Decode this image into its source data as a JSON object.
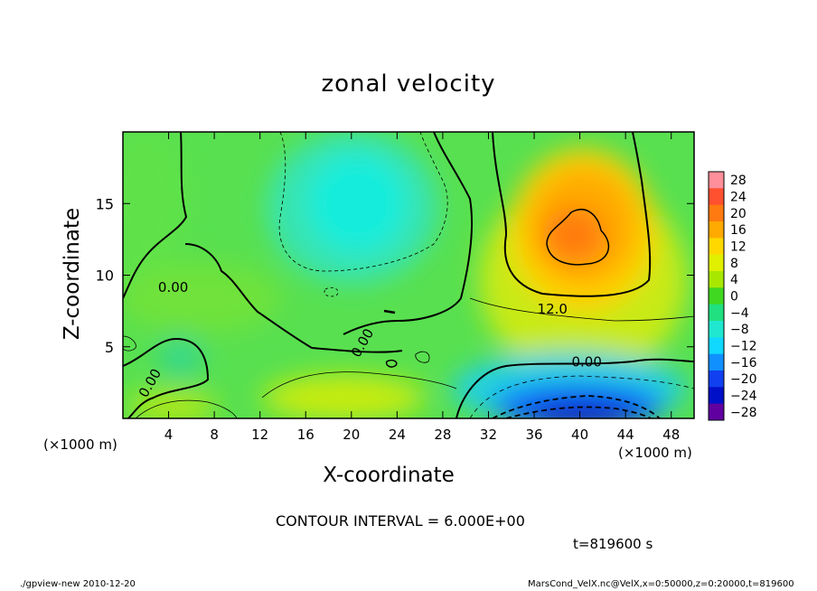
{
  "chart_data": {
    "type": "heatmap",
    "title": "zonal velocity",
    "xlabel": "X-coordinate",
    "ylabel": "Z-coordinate",
    "x_unit_label": "(×1000 m)",
    "xlim": [
      0,
      50
    ],
    "ylim": [
      0,
      20
    ],
    "x_ticks": [
      4,
      8,
      12,
      16,
      20,
      24,
      28,
      32,
      36,
      40,
      44,
      48
    ],
    "y_ticks": [
      5,
      10,
      15
    ],
    "colorbar": {
      "levels": [
        28,
        24,
        20,
        16,
        12,
        8,
        4,
        0,
        -4,
        -8,
        -12,
        -16,
        -20,
        -24,
        -28
      ],
      "labels": [
        "28",
        "24",
        "20",
        "16",
        "12",
        "8",
        "4",
        "0",
        "−4",
        "−8",
        "−12",
        "−16",
        "−20",
        "−24",
        "−28"
      ],
      "colors": [
        "#ff8f9a",
        "#ff5030",
        "#ff7a10",
        "#ffaa00",
        "#ffd800",
        "#e0f000",
        "#a8e800",
        "#40d820",
        "#20e080",
        "#20e8d0",
        "#10d8ff",
        "#1090ff",
        "#1040f0",
        "#0010c8",
        "#6000a0"
      ]
    },
    "contour_labels": [
      {
        "text": "0.00",
        "x": 4.4,
        "z": 9.2
      },
      {
        "text": "12.0",
        "x": 37.6,
        "z": 7.7
      },
      {
        "text": "0.00",
        "x": 40.6,
        "z": 4.0
      },
      {
        "text": "0.00",
        "x": 20.9,
        "z": 5.3
      },
      {
        "text": "0.00",
        "x": 2.3,
        "z": 2.5
      }
    ],
    "features": [
      {
        "name": "positive maximum",
        "x": 39.5,
        "z": 12.5,
        "value": 18
      },
      {
        "name": "negative minimum",
        "x": 40,
        "z": 0.6,
        "value": -22
      },
      {
        "name": "negative region upper",
        "x": 19,
        "z": 15,
        "value": -10
      }
    ]
  },
  "annotations": {
    "contour_interval": "CONTOUR INTERVAL = 6.000E+00",
    "time": "t=819600 s",
    "footer_left": "./gpview-new  2010-12-20",
    "footer_right": "MarsCond_VelX.nc@VelX,x=0:50000,z=0:20000,t=819600"
  }
}
